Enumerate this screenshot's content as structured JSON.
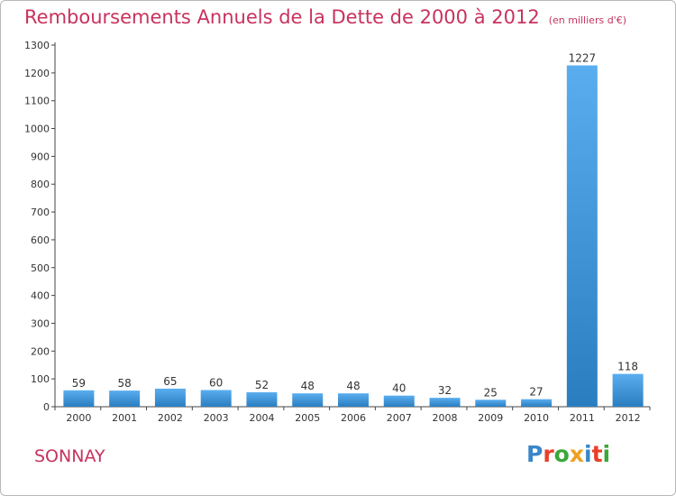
{
  "title": "Remboursements Annuels de la Dette de 2000 à 2012",
  "subtitle": "(en milliers d'€)",
  "city": "SONNAY",
  "logo": {
    "text": "Proxiti",
    "colors": [
      "#3a86c8",
      "#e8402a",
      "#3aa83a",
      "#f0a020",
      "#3a86c8",
      "#e8402a",
      "#3aa83a"
    ]
  },
  "colors": {
    "bar_top": "#5aaef0",
    "bar_bottom": "#2a7ec0",
    "title": "#c8325e",
    "grid": "#cccccc"
  },
  "chart_data": {
    "type": "bar",
    "title": "Remboursements Annuels de la Dette de 2000 à 2012",
    "xlabel": "",
    "ylabel": "",
    "categories": [
      "2000",
      "2001",
      "2002",
      "2003",
      "2004",
      "2005",
      "2006",
      "2007",
      "2008",
      "2009",
      "2010",
      "2011",
      "2012"
    ],
    "values": [
      59,
      58,
      65,
      60,
      52,
      48,
      48,
      40,
      32,
      25,
      27,
      1227,
      118
    ],
    "ylim": [
      0,
      1300
    ],
    "yticks": [
      0,
      100,
      200,
      300,
      400,
      500,
      600,
      700,
      800,
      900,
      1000,
      1100,
      1200,
      1300
    ],
    "grid": false,
    "data_labels": true
  }
}
